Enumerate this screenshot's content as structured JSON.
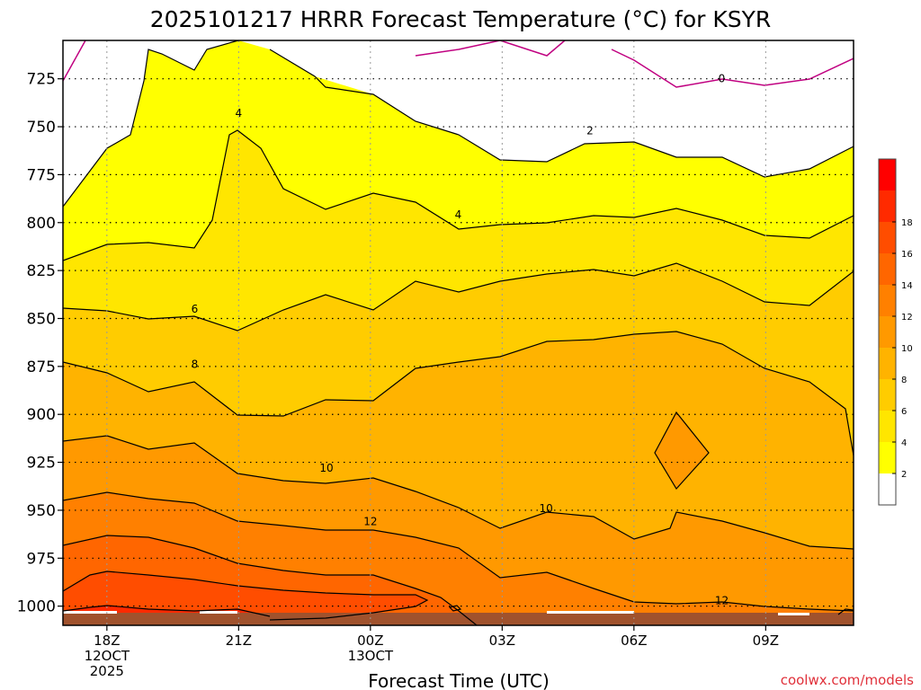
{
  "chart_data": {
    "type": "contour",
    "title": "2025101217 HRRR Forecast Temperature (°C) for KSYR",
    "xlabel": "Forecast Time (UTC)",
    "ylabel": "",
    "credit": "coolwx.com/models",
    "pressure_axis": {
      "unit": "hPa",
      "range": [
        705,
        1010
      ],
      "ticks": [
        725,
        750,
        775,
        800,
        825,
        850,
        875,
        900,
        925,
        950,
        975,
        1000
      ]
    },
    "x_ticks": [
      {
        "hours": 1,
        "lines": [
          "18Z",
          "12OCT",
          "2025"
        ]
      },
      {
        "hours": 4,
        "lines": [
          "21Z"
        ]
      },
      {
        "hours": 7,
        "lines": [
          "00Z",
          "13OCT"
        ]
      },
      {
        "hours": 10,
        "lines": [
          "03Z"
        ]
      },
      {
        "hours": 13,
        "lines": [
          "06Z"
        ]
      },
      {
        "hours": 16,
        "lines": [
          "09Z"
        ]
      }
    ],
    "x_range": [
      0,
      18
    ],
    "colorbar": {
      "levels": [
        2,
        4,
        6,
        8,
        10,
        12,
        14,
        16,
        18
      ],
      "colors": [
        "#ffffff",
        "#ffff00",
        "#ffe600",
        "#ffcc00",
        "#ffb300",
        "#ff9900",
        "#ff8000",
        "#ff6600",
        "#ff4d00",
        "#ff2a00",
        "#ff0000"
      ]
    },
    "contour_labels": [
      {
        "text": "0",
        "x": 15.0,
        "p": 725
      },
      {
        "text": "2",
        "x": 12.0,
        "p": 752
      },
      {
        "text": "4",
        "x": 4.0,
        "p": 743
      },
      {
        "text": "4",
        "x": 9.0,
        "p": 796
      },
      {
        "text": "6",
        "x": 3.0,
        "p": 845
      },
      {
        "text": "8",
        "x": 3.0,
        "p": 874
      },
      {
        "text": "10",
        "x": 6.0,
        "p": 928
      },
      {
        "text": "10",
        "x": 11.0,
        "p": 949
      },
      {
        "text": "12",
        "x": 7.0,
        "p": 956
      },
      {
        "text": "12",
        "x": 15.0,
        "p": 997
      }
    ],
    "grid": true
  }
}
